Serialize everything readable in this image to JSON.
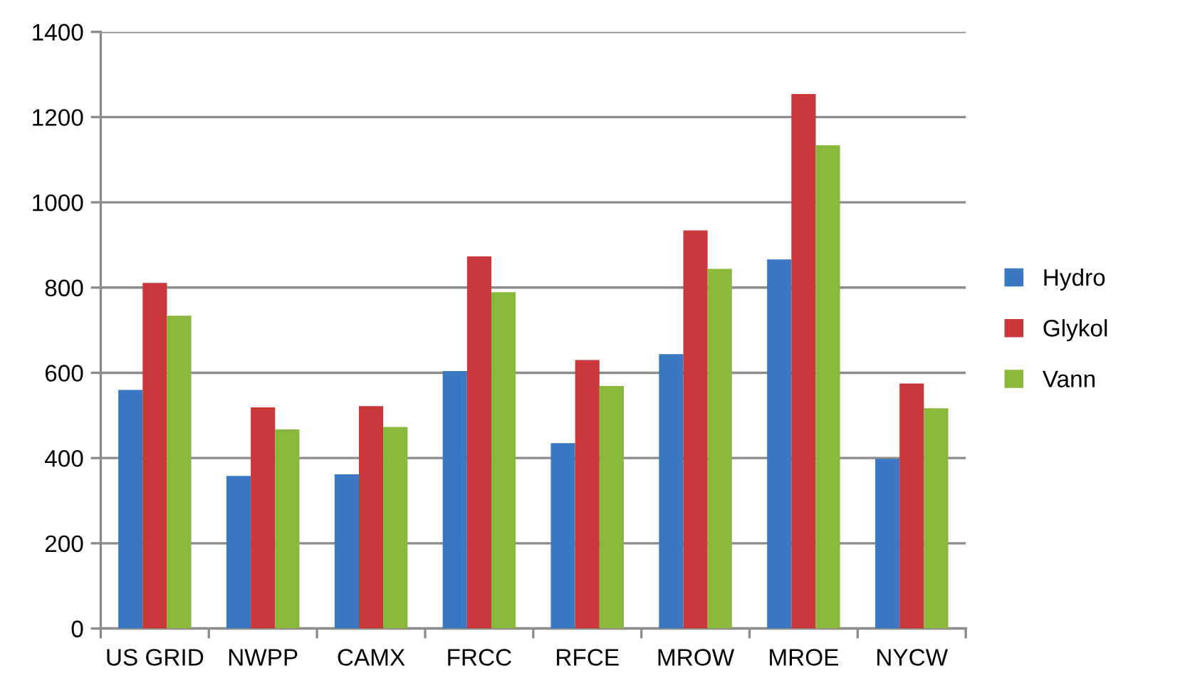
{
  "chart_data": {
    "type": "bar",
    "categories": [
      "US GRID",
      "NWPP",
      "CAMX",
      "FRCC",
      "RFCE",
      "MROW",
      "MROE",
      "NYCW"
    ],
    "series": [
      {
        "name": "Hydro",
        "color": "#3a78c4",
        "values": [
          560,
          358,
          362,
          604,
          435,
          644,
          866,
          398
        ]
      },
      {
        "name": "Glykol",
        "color": "#c9373a",
        "values": [
          811,
          519,
          522,
          873,
          630,
          934,
          1254,
          575
        ]
      },
      {
        "name": "Vann",
        "color": "#8ab83a",
        "values": [
          734,
          467,
          473,
          789,
          569,
          844,
          1134,
          517
        ]
      }
    ],
    "ylim": [
      0,
      1400
    ],
    "yticks": [
      0,
      200,
      400,
      600,
      800,
      1000,
      1200,
      1400
    ],
    "grid": "y",
    "legend": "right"
  }
}
